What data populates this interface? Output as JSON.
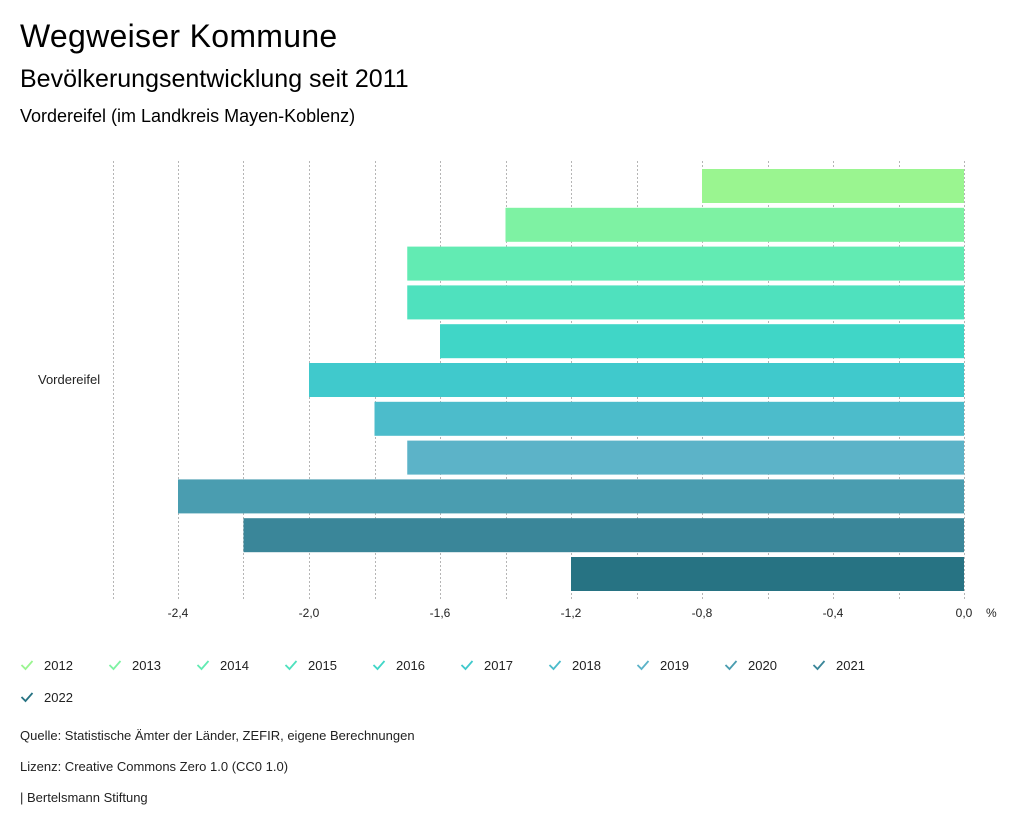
{
  "header": {
    "title": "Wegweiser Kommune",
    "subtitle": "Bevölkerungsentwicklung seit 2011",
    "region": "Vordereifel (im Landkreis Mayen-Koblenz)"
  },
  "chart_data": {
    "type": "bar",
    "orientation": "horizontal",
    "categories": [
      "Vordereifel"
    ],
    "series": [
      {
        "name": "2012",
        "values": [
          -0.8
        ],
        "color": "#9af590"
      },
      {
        "name": "2013",
        "values": [
          -1.4
        ],
        "color": "#7ef2a3"
      },
      {
        "name": "2014",
        "values": [
          -1.7
        ],
        "color": "#62ebb3"
      },
      {
        "name": "2015",
        "values": [
          -1.7
        ],
        "color": "#4fe1be"
      },
      {
        "name": "2016",
        "values": [
          -1.6
        ],
        "color": "#40d6c7"
      },
      {
        "name": "2017",
        "values": [
          -2.0
        ],
        "color": "#40c9cc"
      },
      {
        "name": "2018",
        "values": [
          -1.8
        ],
        "color": "#4cbccb"
      },
      {
        "name": "2019",
        "values": [
          -1.7
        ],
        "color": "#5cb3c8"
      },
      {
        "name": "2020",
        "values": [
          -2.4
        ],
        "color": "#4a9db0"
      },
      {
        "name": "2021",
        "values": [
          -2.2
        ],
        "color": "#3a8699"
      },
      {
        "name": "2022",
        "values": [
          -1.2
        ],
        "color": "#277383"
      }
    ],
    "xlim": [
      -2.6,
      0.0
    ],
    "xticks": [
      -2.4,
      -2.0,
      -1.6,
      -1.2,
      -0.8,
      -0.4,
      0.0
    ],
    "xtick_labels": [
      "-2,4",
      "-2,0",
      "-1,6",
      "-1,2",
      "-0,8",
      "-0,4",
      "0,0"
    ],
    "gridlines": [
      -2.6,
      -2.4,
      -2.2,
      -2.0,
      -1.8,
      -1.6,
      -1.4,
      -1.2,
      -1.0,
      -0.8,
      -0.6,
      -0.4,
      -0.2,
      0.0
    ],
    "unit": "%",
    "grid": true,
    "legend_position": "bottom"
  },
  "footer": {
    "source": "Quelle: Statistische Ämter der Länder, ZEFIR, eigene Berechnungen",
    "license": "Lizenz: Creative Commons Zero 1.0 (CC0 1.0)",
    "publisher": "| Bertelsmann Stiftung"
  }
}
